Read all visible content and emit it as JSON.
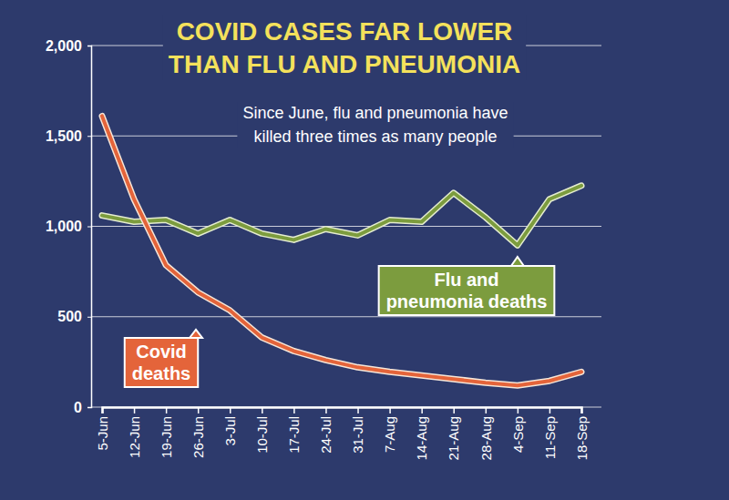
{
  "chart_data": {
    "type": "line",
    "title": "COVID CASES FAR LOWER THAN FLU AND PNEUMONIA",
    "subtitle": "Since June, flu and pneumonia have killed three times as many people",
    "categories": [
      "5-Jun",
      "12-Jun",
      "19-Jun",
      "26-Jun",
      "3-Jul",
      "10-Jul",
      "17-Jul",
      "24-Jul",
      "31-Jul",
      "7-Aug",
      "14-Aug",
      "21-Aug",
      "28-Aug",
      "4-Sep",
      "11-Sep",
      "18-Sep"
    ],
    "series": [
      {
        "name": "Covid deaths",
        "color": "#e4643a",
        "values": [
          1610,
          1150,
          785,
          635,
          535,
          385,
          310,
          260,
          220,
          195,
          175,
          155,
          135,
          120,
          145,
          195
        ]
      },
      {
        "name": "Flu and pneumonia deaths",
        "color": "#7c9c3e",
        "values": [
          1060,
          1025,
          1035,
          960,
          1035,
          960,
          925,
          985,
          950,
          1035,
          1025,
          1185,
          1050,
          895,
          1150,
          1225
        ]
      }
    ],
    "ylim": [
      0,
      2000
    ],
    "yticks": [
      0,
      500,
      {
        "value": 1000,
        "label": "1,000"
      },
      {
        "value": 1500,
        "label": "1,500"
      },
      {
        "value": 2000,
        "label": "2,000"
      }
    ],
    "grid": true
  }
}
